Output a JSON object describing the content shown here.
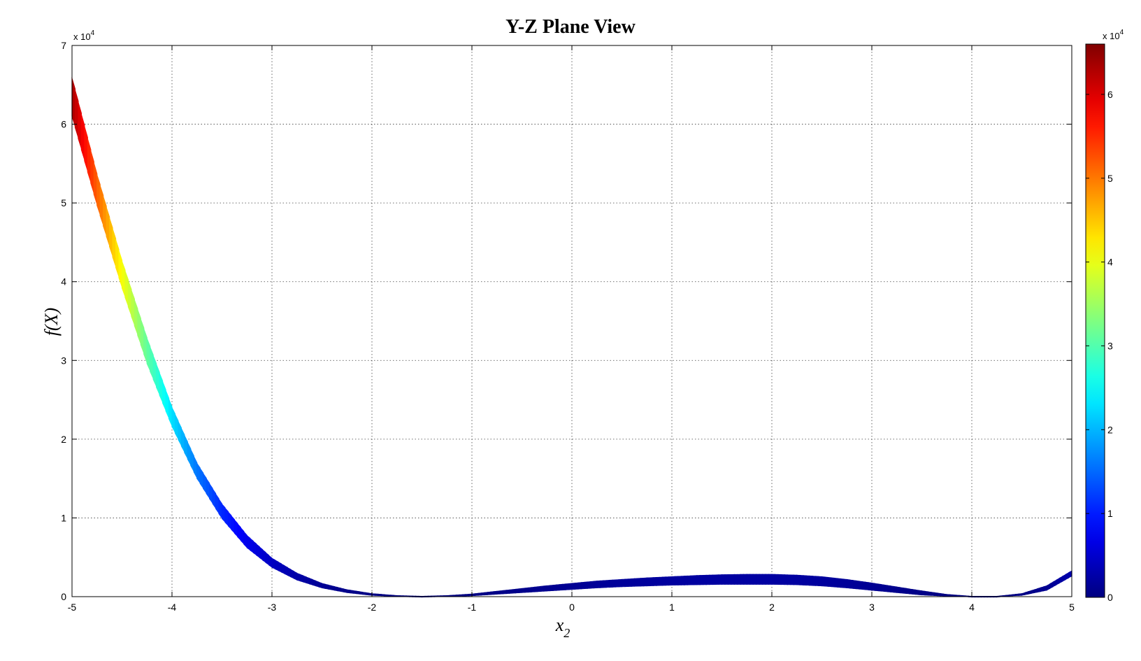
{
  "chart_data": {
    "type": "area",
    "title": "Y-Z Plane View",
    "xlabel": "x",
    "xlabel_sub": "2",
    "ylabel": "f(X)",
    "xlim": [
      -5,
      5
    ],
    "ylim": [
      0,
      70000
    ],
    "x_ticks": [
      -5,
      -4,
      -3,
      -2,
      -1,
      0,
      1,
      2,
      3,
      4,
      5
    ],
    "y_ticks": [
      0,
      10000,
      20000,
      30000,
      40000,
      50000,
      60000,
      70000
    ],
    "x_tick_labels": [
      "-5",
      "-4",
      "-3",
      "-2",
      "-1",
      "0",
      "1",
      "2",
      "3",
      "4",
      "5"
    ],
    "y_tick_labels": [
      "0",
      "1",
      "2",
      "3",
      "4",
      "5",
      "6",
      "7"
    ],
    "y_exponent_label": "x 10",
    "y_exponent_power": "4",
    "grid": true,
    "colormap": "jet",
    "band_x": [
      -5.0,
      -4.75,
      -4.5,
      -4.25,
      -4.0,
      -3.75,
      -3.5,
      -3.25,
      -3.0,
      -2.75,
      -2.5,
      -2.25,
      -2.0,
      -1.75,
      -1.5,
      -1.25,
      -1.0,
      -0.75,
      -0.5,
      -0.25,
      0.0,
      0.25,
      0.5,
      0.75,
      1.0,
      1.25,
      1.5,
      1.75,
      2.0,
      2.25,
      2.5,
      2.75,
      3.0,
      3.25,
      3.5,
      3.75,
      4.0,
      4.25,
      4.5,
      4.75,
      5.0
    ],
    "band_upper": [
      66000,
      53700,
      42700,
      32900,
      24100,
      17000,
      11800,
      7800,
      4900,
      3000,
      1700,
      900,
      400,
      150,
      60,
      150,
      350,
      700,
      1050,
      1400,
      1700,
      2000,
      2200,
      2400,
      2550,
      2700,
      2800,
      2850,
      2850,
      2750,
      2550,
      2200,
      1750,
      1250,
      750,
      300,
      60,
      60,
      400,
      1400,
      3300
    ],
    "band_lower": [
      61000,
      49700,
      39200,
      29600,
      21600,
      15000,
      9900,
      6200,
      3700,
      2100,
      1100,
      500,
      150,
      20,
      0,
      0,
      100,
      300,
      500,
      700,
      900,
      1100,
      1250,
      1350,
      1450,
      1500,
      1550,
      1550,
      1550,
      1500,
      1350,
      1100,
      800,
      500,
      200,
      50,
      0,
      0,
      150,
      800,
      2600
    ],
    "colorbar": {
      "lim": [
        0,
        66000
      ],
      "ticks": [
        0,
        10000,
        20000,
        30000,
        40000,
        50000,
        60000
      ],
      "tick_labels": [
        "0",
        "1",
        "2",
        "3",
        "4",
        "5",
        "6"
      ],
      "exponent_label": "x 10",
      "exponent_power": "4"
    }
  }
}
